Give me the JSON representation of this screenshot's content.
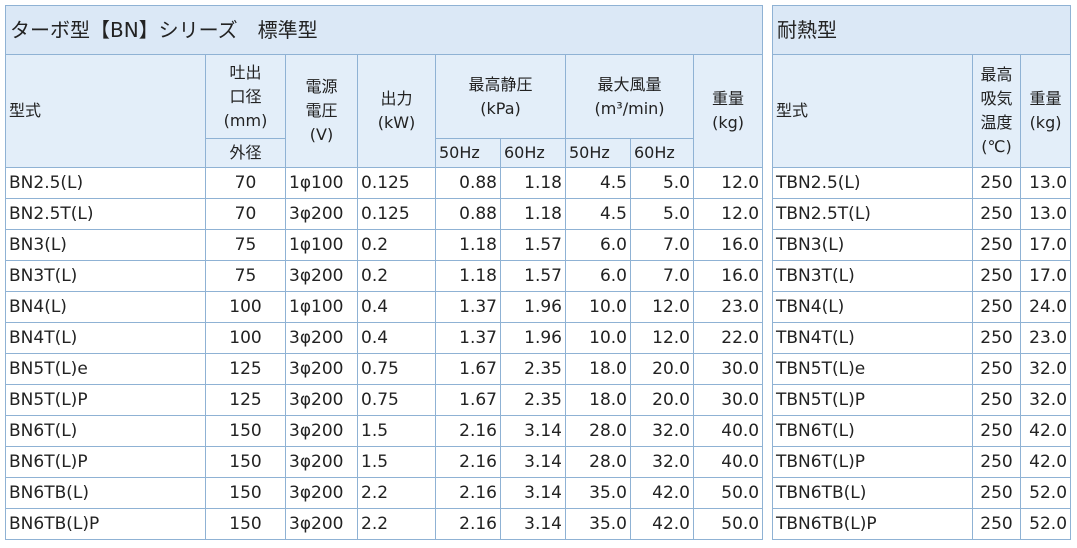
{
  "left": {
    "title": "ターボ型【BN】シリーズ　標準型",
    "header": {
      "model": "型式",
      "outlet": "吐出\n口径\n(mm)",
      "outlet_sub": "外径",
      "voltage": "電源\n電圧\n(V)",
      "output": "出力\n(kW)",
      "pressure": "最高静圧\n(kPa)",
      "pressure_50": "50Hz",
      "pressure_60": "60Hz",
      "flow": "最大風量\n(m³/min)",
      "flow_50": "50Hz",
      "flow_60": "60Hz",
      "weight": "重量\n(kg)"
    },
    "rows": [
      [
        "BN2.5(L)",
        "70",
        "1φ100",
        "0.125",
        "0.88",
        "1.18",
        "4.5",
        "5.0",
        "12.0"
      ],
      [
        "BN2.5T(L)",
        "70",
        "3φ200",
        "0.125",
        "0.88",
        "1.18",
        "4.5",
        "5.0",
        "12.0"
      ],
      [
        "BN3(L)",
        "75",
        "1φ100",
        "0.2",
        "1.18",
        "1.57",
        "6.0",
        "7.0",
        "16.0"
      ],
      [
        "BN3T(L)",
        "75",
        "3φ200",
        "0.2",
        "1.18",
        "1.57",
        "6.0",
        "7.0",
        "16.0"
      ],
      [
        "BN4(L)",
        "100",
        "1φ100",
        "0.4",
        "1.37",
        "1.96",
        "10.0",
        "12.0",
        "23.0"
      ],
      [
        "BN4T(L)",
        "100",
        "3φ200",
        "0.4",
        "1.37",
        "1.96",
        "10.0",
        "12.0",
        "22.0"
      ],
      [
        "BN5T(L)e",
        "125",
        "3φ200",
        "0.75",
        "1.67",
        "2.35",
        "18.0",
        "20.0",
        "30.0"
      ],
      [
        "BN5T(L)P",
        "125",
        "3φ200",
        "0.75",
        "1.67",
        "2.35",
        "18.0",
        "20.0",
        "30.0"
      ],
      [
        "BN6T(L)",
        "150",
        "3φ200",
        "1.5",
        "2.16",
        "3.14",
        "28.0",
        "32.0",
        "40.0"
      ],
      [
        "BN6T(L)P",
        "150",
        "3φ200",
        "1.5",
        "2.16",
        "3.14",
        "28.0",
        "32.0",
        "40.0"
      ],
      [
        "BN6TB(L)",
        "150",
        "3φ200",
        "2.2",
        "2.16",
        "3.14",
        "35.0",
        "42.0",
        "50.0"
      ],
      [
        "BN6TB(L)P",
        "150",
        "3φ200",
        "2.2",
        "2.16",
        "3.14",
        "35.0",
        "42.0",
        "50.0"
      ]
    ]
  },
  "right": {
    "title": "耐熱型",
    "header": {
      "model": "型式",
      "temp": "最高\n吸気\n温度\n(℃)",
      "weight": "重量\n(kg)"
    },
    "rows": [
      [
        "TBN2.5(L)",
        "250",
        "13.0"
      ],
      [
        "TBN2.5T(L)",
        "250",
        "13.0"
      ],
      [
        "TBN3(L)",
        "250",
        "17.0"
      ],
      [
        "TBN3T(L)",
        "250",
        "17.0"
      ],
      [
        "TBN4(L)",
        "250",
        "24.0"
      ],
      [
        "TBN4T(L)",
        "250",
        "23.0"
      ],
      [
        "TBN5T(L)e",
        "250",
        "32.0"
      ],
      [
        "TBN5T(L)P",
        "250",
        "32.0"
      ],
      [
        "TBN6T(L)",
        "250",
        "42.0"
      ],
      [
        "TBN6T(L)P",
        "250",
        "42.0"
      ],
      [
        "TBN6TB(L)",
        "250",
        "52.0"
      ],
      [
        "TBN6TB(L)P",
        "250",
        "52.0"
      ]
    ]
  }
}
